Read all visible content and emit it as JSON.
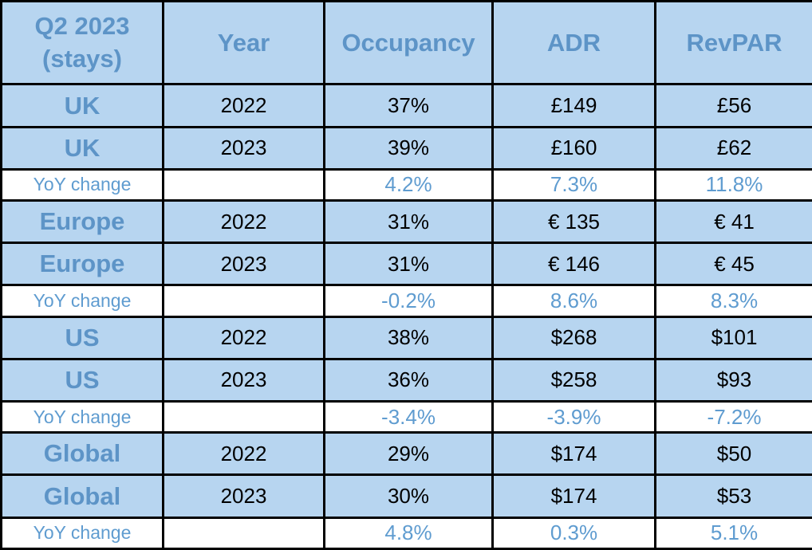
{
  "header": {
    "title_line1": "Q2 2023",
    "title_line2": "(stays)"
  },
  "chart_data": {
    "type": "table",
    "title": "Q2 2023 (stays)",
    "columns": [
      "Year",
      "Occupancy",
      "ADR",
      "RevPAR"
    ],
    "rows": [
      {
        "type": "data",
        "region": "UK",
        "year": "2022",
        "occupancy": "37%",
        "adr": "£149",
        "revpar": "£56"
      },
      {
        "type": "data",
        "region": "UK",
        "year": "2023",
        "occupancy": "39%",
        "adr": "£160",
        "revpar": "£62"
      },
      {
        "type": "yoy",
        "region": "YoY change",
        "year": "",
        "occupancy": "4.2%",
        "adr": "7.3%",
        "revpar": "11.8%"
      },
      {
        "type": "data",
        "region": "Europe",
        "year": "2022",
        "occupancy": "31%",
        "adr": "€ 135",
        "revpar": "€ 41"
      },
      {
        "type": "data",
        "region": "Europe",
        "year": "2023",
        "occupancy": "31%",
        "adr": "€ 146",
        "revpar": "€ 45"
      },
      {
        "type": "yoy",
        "region": "YoY change",
        "year": "",
        "occupancy": "-0.2%",
        "adr": "8.6%",
        "revpar": "8.3%"
      },
      {
        "type": "data",
        "region": "US",
        "year": "2022",
        "occupancy": "38%",
        "adr": "$268",
        "revpar": "$101"
      },
      {
        "type": "data",
        "region": "US",
        "year": "2023",
        "occupancy": "36%",
        "adr": "$258",
        "revpar": "$93"
      },
      {
        "type": "yoy",
        "region": "YoY change",
        "year": "",
        "occupancy": "-3.4%",
        "adr": "-3.9%",
        "revpar": "-7.2%"
      },
      {
        "type": "data",
        "region": "Global",
        "year": "2022",
        "occupancy": "29%",
        "adr": "$174",
        "revpar": "$50"
      },
      {
        "type": "data",
        "region": "Global",
        "year": "2023",
        "occupancy": "30%",
        "adr": "$174",
        "revpar": "$53"
      },
      {
        "type": "yoy",
        "region": "YoY change",
        "year": "",
        "occupancy": "4.8%",
        "adr": "0.3%",
        "revpar": "5.1%"
      }
    ]
  },
  "colors": {
    "cell_fill": "#B7D5F0",
    "yoy_fill": "#FFFFFF",
    "header_text": "#5D94C7",
    "yoy_text": "#5F9CD0",
    "data_text": "#000000",
    "border": "#000000"
  }
}
